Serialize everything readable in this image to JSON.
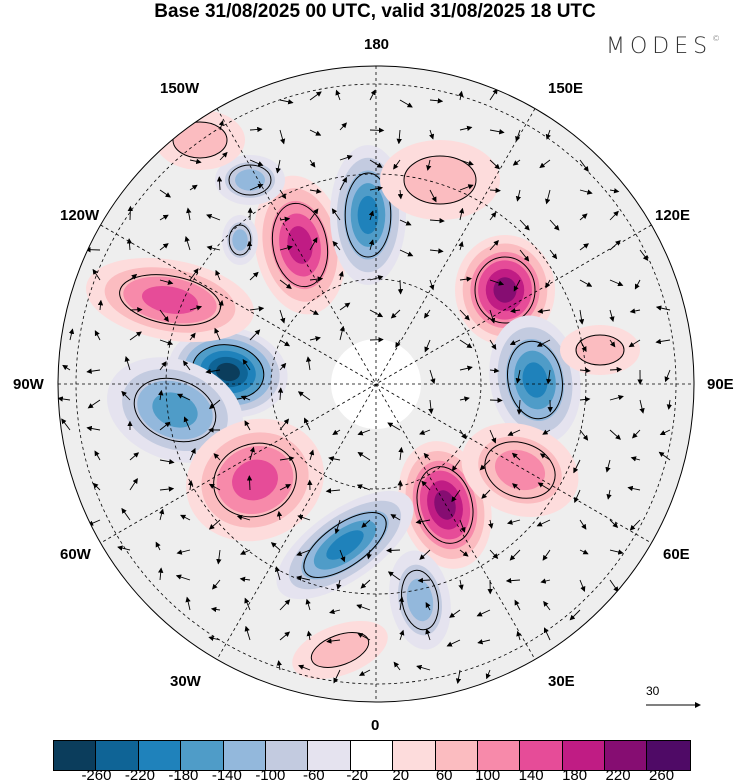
{
  "title": "Base 31/08/2025 00 UTC, valid 31/08/2025 18 UTC",
  "logo": "MODES",
  "longitude_labels": {
    "top": "180",
    "bottom": "0",
    "left": "90W",
    "right": "90E",
    "tl1": "150W",
    "tl2": "120W",
    "tr1": "150E",
    "tr2": "120E",
    "bl1": "60W",
    "bl2": "30W",
    "br1": "60E",
    "br2": "30E"
  },
  "reference_vector": "30",
  "colorbar": {
    "colors": [
      "#0b3d5c",
      "#0f6496",
      "#1f82bb",
      "#4f9cc8",
      "#93b8dc",
      "#c3cbe0",
      "#e5e3ef",
      "#ffffff",
      "#fddcdc",
      "#fbbcc0",
      "#f78aaa",
      "#e64c98",
      "#c01c84",
      "#860d72",
      "#4f0a66"
    ],
    "ticks": [
      "-260",
      "-220",
      "-180",
      "-140",
      "-100",
      "-60",
      "-20",
      "20",
      "60",
      "100",
      "140",
      "180",
      "220",
      "260"
    ]
  }
}
